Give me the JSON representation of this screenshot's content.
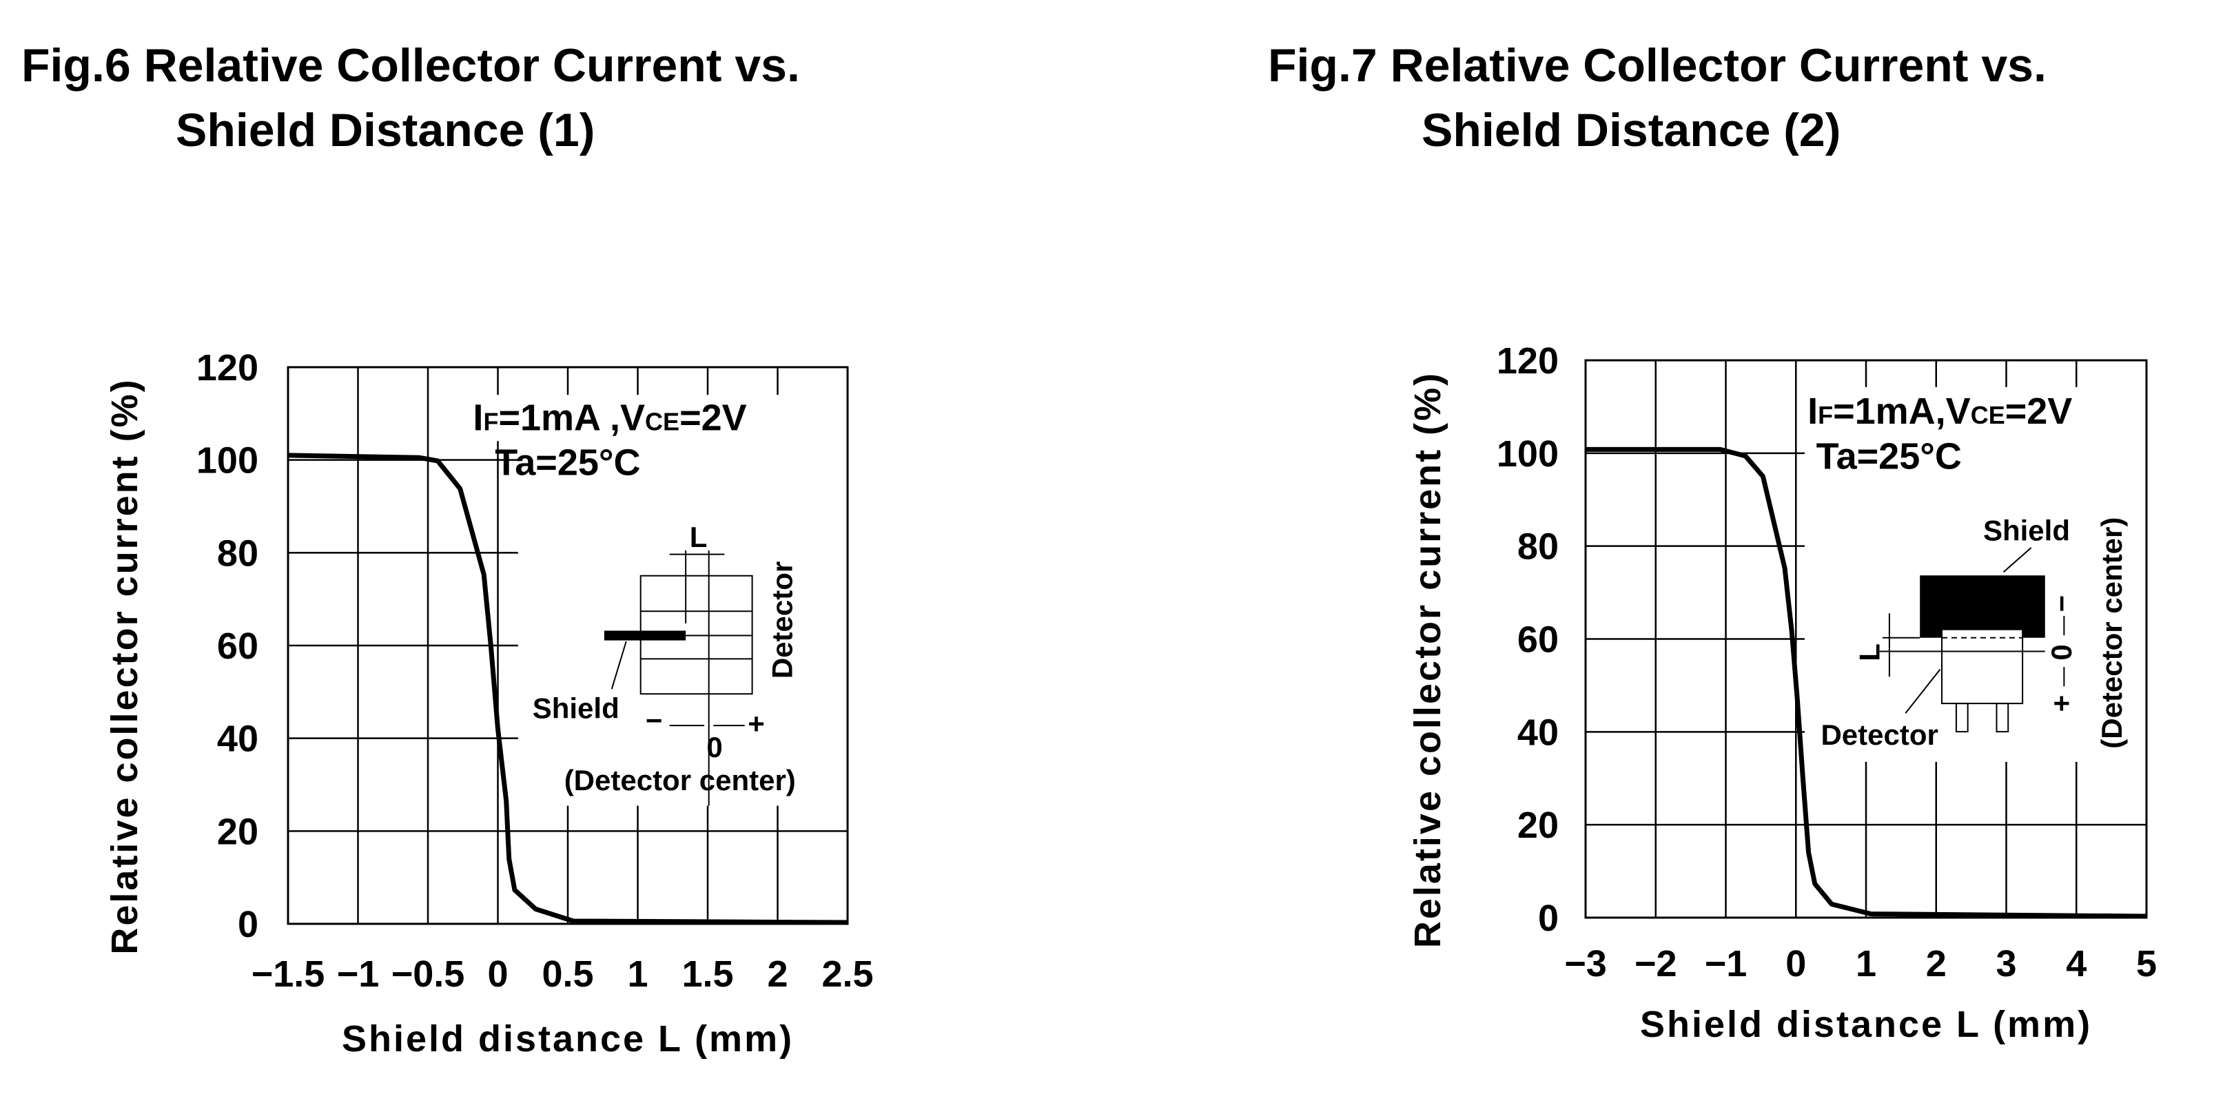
{
  "chart_data": [
    {
      "type": "line",
      "title": "Fig.6  Relative Collector Current vs. Shield Distance (1)",
      "title_lines": [
        "Fig.6  Relative Collector Current vs.",
        "Shield Distance (1)"
      ],
      "xlabel": "Shield  distance  L  (mm)",
      "ylabel": "Relative  collector  current  (%)",
      "xlim": [
        -1.5,
        2.5
      ],
      "ylim": [
        0,
        120
      ],
      "xticks": [
        -1.5,
        -1,
        -0.5,
        0,
        0.5,
        1,
        1.5,
        2,
        2.5
      ],
      "xtick_labels": [
        "−1.5",
        "−1",
        "−0.5",
        "0",
        "0.5",
        "1",
        "1.5",
        "2",
        "2.5"
      ],
      "yticks": [
        0,
        20,
        40,
        60,
        80,
        100,
        120
      ],
      "ytick_labels": [
        "0",
        "20",
        "40",
        "60",
        "80",
        "100",
        "120"
      ],
      "grid": true,
      "series": [
        {
          "name": "Relative collector current",
          "x": [
            -1.5,
            -0.56,
            -0.43,
            -0.27,
            -0.1,
            -0.05,
            0.0,
            0.06,
            0.08,
            0.12,
            0.27,
            0.54,
            2.5
          ],
          "y": [
            101,
            100.5,
            99.8,
            93.8,
            75.3,
            60,
            42,
            26.5,
            14,
            7.3,
            3.2,
            0.6,
            0.3
          ]
        }
      ],
      "conditions": {
        "i": "I",
        "f_sub": "F",
        "mid": "=1mA  ,V",
        "ce_sub": "CE",
        "end": "=2V",
        "ta": "Ta=25°C"
      },
      "inset": {
        "l_label": "L",
        "detector": "Detector",
        "shield": "Shield",
        "minus": "−",
        "plus": "+",
        "zero": "0",
        "center": "(Detector  center)"
      }
    },
    {
      "type": "line",
      "title": "Fig.7  Relative Collector Current vs. Shield Distance (2)",
      "title_lines": [
        "Fig.7  Relative Collector Current vs.",
        "Shield Distance (2)"
      ],
      "xlabel": "Shield  distance  L  (mm)",
      "ylabel": "Relative  collector  current  (%)",
      "xlim": [
        -3,
        5
      ],
      "ylim": [
        0,
        120
      ],
      "xticks": [
        -3,
        -2,
        -1,
        0,
        1,
        2,
        3,
        4,
        5
      ],
      "xtick_labels": [
        "−3",
        "−2",
        "−1",
        "0",
        "1",
        "2",
        "3",
        "4",
        "5"
      ],
      "yticks": [
        0,
        20,
        40,
        60,
        80,
        100,
        120
      ],
      "ytick_labels": [
        "0",
        "20",
        "40",
        "60",
        "80",
        "100",
        "120"
      ],
      "grid": true,
      "series": [
        {
          "name": "Relative collector current",
          "x": [
            -3,
            -1.08,
            -0.72,
            -0.47,
            -0.16,
            -0.06,
            0.02,
            0.1,
            0.18,
            0.27,
            0.51,
            1.07,
            5
          ],
          "y": [
            100.8,
            100.8,
            99.4,
            95,
            75.3,
            61.8,
            47,
            30,
            14,
            7.3,
            2.9,
            0.8,
            0.3
          ]
        }
      ],
      "conditions": {
        "i": "I",
        "f_sub": "F",
        "mid": "=1mA,V",
        "ce_sub": "CE",
        "end": "=2V",
        "ta": "Ta=25°C"
      },
      "inset": {
        "l_label": "L",
        "detector": "Detector",
        "shield": "Shield",
        "minus": "−",
        "plus": "+",
        "zero": "0",
        "center": "(Detector  center)"
      }
    }
  ]
}
